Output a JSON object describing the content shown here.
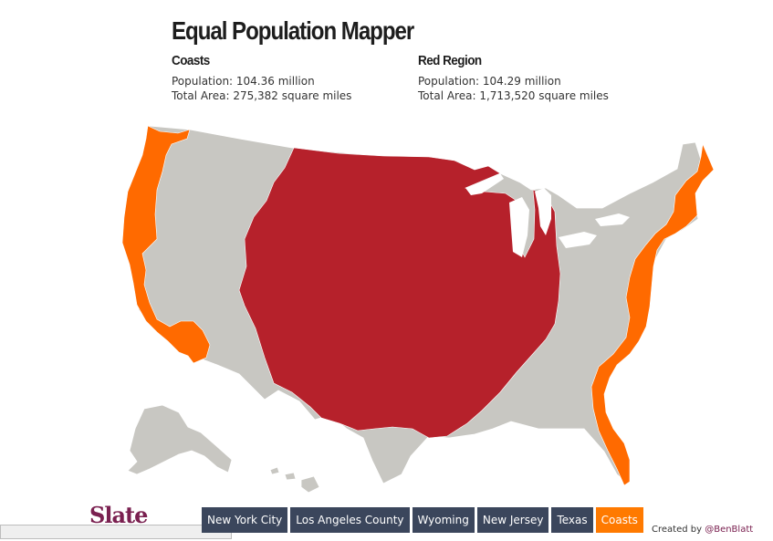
{
  "title": "Equal Population Mapper",
  "regions": {
    "coasts": {
      "name": "Coasts",
      "population": "Population: 104.36 million",
      "area": "Total Area: 275,382 square miles"
    },
    "red": {
      "name": "Red Region",
      "population": "Population: 104.29 million",
      "area": "Total Area: 1,713,520 square miles"
    }
  },
  "colors": {
    "base": "#c8c7c2",
    "red_region": "#b6212b",
    "coasts": "#ff6a00",
    "button": "#3b465c",
    "button_active": "#ff7a00"
  },
  "buttons": [
    {
      "label": "New York City",
      "active": false
    },
    {
      "label": "Los Angeles County",
      "active": false
    },
    {
      "label": "Wyoming",
      "active": false
    },
    {
      "label": "New Jersey",
      "active": false
    },
    {
      "label": "Texas",
      "active": false
    },
    {
      "label": "Coasts",
      "active": true
    }
  ],
  "logo": "Slate",
  "credit": {
    "prefix": "Created by ",
    "handle": "@BenBlatt"
  }
}
